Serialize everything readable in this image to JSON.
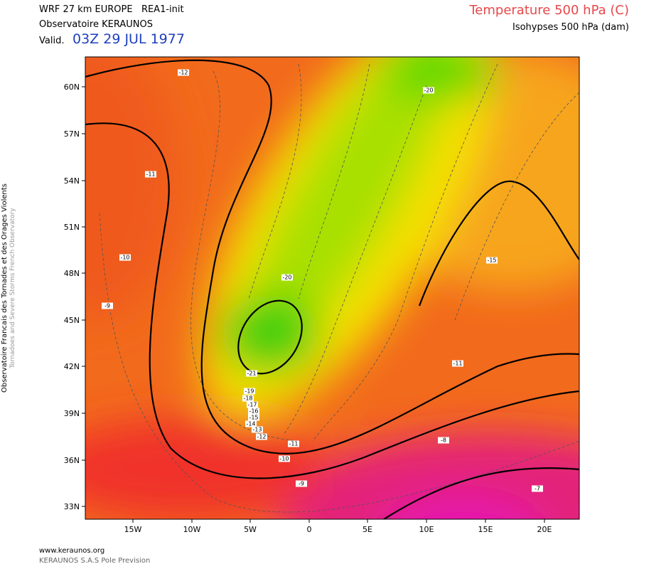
{
  "header": {
    "model": "WRF 27 km EUROPE   REA1-init",
    "organization": "Observatoire KERAUNOS",
    "valid_prefix": "Valid.",
    "valid_time": "03Z 29 JUL 1977",
    "field_title": "Temperature 500 hPa (C)",
    "contour_title": "Isohypses 500 hPa (dam)"
  },
  "side_text": {
    "line1": "Observatoire Francais des Tornades et des Orages Violents",
    "line2": "Tornadoes and Severe Storms French Observatory"
  },
  "map": {
    "lat_labels": [
      "60N",
      "57N",
      "54N",
      "51N",
      "48N",
      "45N",
      "42N",
      "39N",
      "36N",
      "33N"
    ],
    "lon_labels": [
      "15W",
      "10W",
      "5W",
      "0",
      "5E",
      "10E",
      "15E",
      "20E"
    ],
    "contour_labels": [
      "-12",
      "-20",
      "-11",
      "-10",
      "-9",
      "-20",
      "-15",
      "-21",
      "-19",
      "-18",
      "-17",
      "-16",
      "-15",
      "-14",
      "-13",
      "-12",
      "-11",
      "-10",
      "-11",
      "-8",
      "-9",
      "-7"
    ]
  },
  "footer": {
    "website": "www.keraunos.org",
    "company": "KERAUNOS S.A.S Pole Prevision"
  }
}
